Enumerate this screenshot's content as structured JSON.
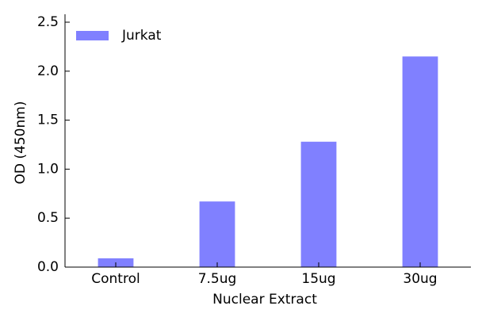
{
  "chart_data": {
    "type": "bar",
    "x_label": "Nuclear Extract",
    "y_label": "OD (450nm)",
    "categories": [
      "Control",
      "7.5ug",
      "15ug",
      "30ug"
    ],
    "series": [
      {
        "name": "Jurkat",
        "color": "#8080ff",
        "values": [
          0.09,
          0.67,
          1.28,
          2.15
        ]
      }
    ],
    "ylim": [
      0,
      2.5
    ],
    "yticks": [
      {
        "value": 0,
        "label": "0.0"
      },
      {
        "value": 0.5,
        "label": "0.5"
      },
      {
        "value": 1,
        "label": "1.0"
      },
      {
        "value": 1.5,
        "label": "1.5"
      },
      {
        "value": 2,
        "label": "2.0"
      },
      {
        "value": 2.5,
        "label": "2.5"
      }
    ],
    "legend": "upper-left"
  }
}
